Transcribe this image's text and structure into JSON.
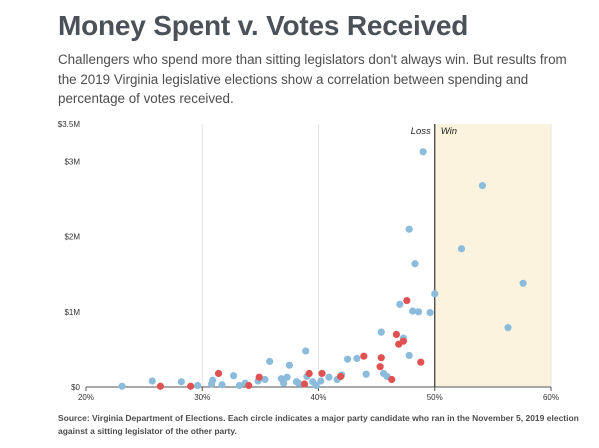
{
  "title": "Money Spent v. Votes Received",
  "subtitle": "Challengers who spend more than sitting legislators don't always win. But results from the 2019 Virginia legislative elections show a correlation between spending and percentage of votes received.",
  "source": "Source: Virginia Department of Elections. Each circle indicates a major party candidate who ran in the November 5, 2019 election against a sitting legislator of the other party.",
  "colors": {
    "blue": "#8bbcdc",
    "red": "#e05252",
    "win_zone": "#fbf3dd",
    "grid": "#e6e6e6",
    "axis": "#555555",
    "threshold": "#333333"
  },
  "chart_data": {
    "type": "scatter",
    "xlim": [
      20,
      60
    ],
    "ylim": [
      0,
      3.5
    ],
    "x_ticks": [
      20,
      30,
      40,
      50,
      60
    ],
    "x_tick_labels": [
      "20%",
      "30%",
      "40%",
      "50%",
      "60%"
    ],
    "y_ticks": [
      0,
      1,
      2,
      3,
      3.5
    ],
    "y_tick_labels": [
      "$0",
      "$1M",
      "$2M",
      "$3M",
      "$3.5M"
    ],
    "threshold": 50,
    "zone_labels": {
      "loss": "Loss",
      "win": "Win"
    },
    "grid": "vertical",
    "series": [
      {
        "color": "blue",
        "points": [
          [
            23.1,
            0.01
          ],
          [
            25.7,
            0.08
          ],
          [
            28.2,
            0.07
          ],
          [
            29.6,
            0.02
          ],
          [
            30.8,
            0.04
          ],
          [
            30.9,
            0.09
          ],
          [
            31.7,
            0.03
          ],
          [
            32.7,
            0.15
          ],
          [
            33.2,
            0.02
          ],
          [
            33.7,
            0.05
          ],
          [
            34.8,
            0.08
          ],
          [
            35.4,
            0.1
          ],
          [
            35.8,
            0.34
          ],
          [
            36.8,
            0.11
          ],
          [
            37.0,
            0.05
          ],
          [
            37.3,
            0.13
          ],
          [
            37.5,
            0.29
          ],
          [
            38.1,
            0.07
          ],
          [
            38.3,
            0.05
          ],
          [
            38.9,
            0.48
          ],
          [
            39.0,
            0.14
          ],
          [
            39.5,
            0.07
          ],
          [
            39.8,
            0.02
          ],
          [
            40.2,
            0.08
          ],
          [
            40.9,
            0.13
          ],
          [
            41.6,
            0.1
          ],
          [
            42.0,
            0.16
          ],
          [
            42.5,
            0.37
          ],
          [
            43.3,
            0.38
          ],
          [
            44.1,
            0.17
          ],
          [
            45.4,
            0.73
          ],
          [
            45.6,
            0.18
          ],
          [
            45.9,
            0.14
          ],
          [
            47.0,
            1.1
          ],
          [
            47.3,
            0.65
          ],
          [
            47.8,
            0.42
          ],
          [
            47.8,
            2.1
          ],
          [
            48.1,
            1.01
          ],
          [
            48.3,
            1.64
          ],
          [
            48.6,
            1.0
          ],
          [
            49.0,
            3.13
          ],
          [
            49.6,
            0.99
          ],
          [
            50.0,
            1.24
          ],
          [
            52.3,
            1.84
          ],
          [
            54.1,
            2.68
          ],
          [
            56.3,
            0.79
          ],
          [
            57.6,
            1.38
          ]
        ]
      },
      {
        "color": "red",
        "points": [
          [
            26.4,
            0.01
          ],
          [
            29.0,
            0.01
          ],
          [
            31.4,
            0.18
          ],
          [
            34.0,
            0.02
          ],
          [
            34.9,
            0.13
          ],
          [
            38.8,
            0.04
          ],
          [
            39.2,
            0.18
          ],
          [
            40.3,
            0.18
          ],
          [
            41.9,
            0.14
          ],
          [
            43.9,
            0.41
          ],
          [
            45.3,
            0.27
          ],
          [
            45.4,
            0.39
          ],
          [
            46.3,
            0.1
          ],
          [
            46.7,
            0.7
          ],
          [
            46.9,
            0.57
          ],
          [
            47.3,
            0.61
          ],
          [
            47.6,
            1.15
          ],
          [
            48.8,
            0.33
          ]
        ]
      }
    ]
  }
}
